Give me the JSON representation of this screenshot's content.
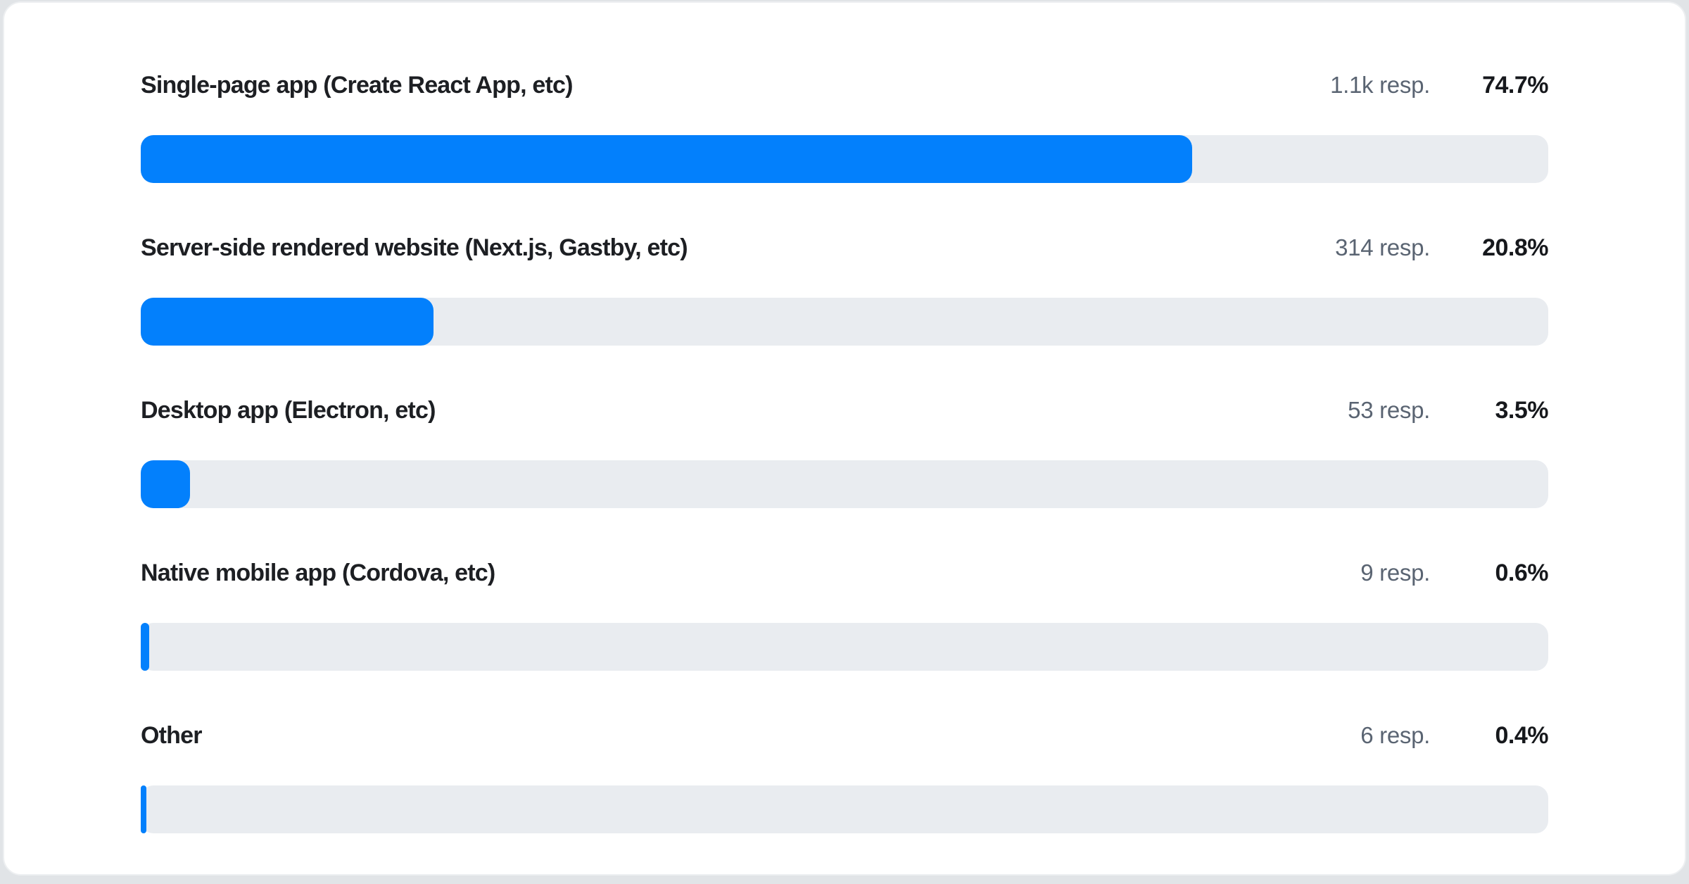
{
  "colors": {
    "bar_fill": "#0380fc",
    "bar_track": "#e9ecf0",
    "label_text": "#1d1f23",
    "responses_text": "#5a6472",
    "percent_text": "#16181c",
    "card_background": "#ffffff",
    "page_background": "#e1e4e7"
  },
  "chart_data": {
    "type": "bar",
    "orientation": "horizontal",
    "title": "",
    "xlabel": "",
    "ylabel": "",
    "xlim": [
      0,
      100
    ],
    "grid": false,
    "legend": false,
    "value_unit": "percent of responses",
    "categories": [
      "Single-page app (Create React App, etc)",
      "Server-side rendered website (Next.js, Gastby, etc)",
      "Desktop app (Electron, etc)",
      "Native mobile app (Cordova, etc)",
      "Other"
    ],
    "values": [
      74.7,
      20.8,
      3.5,
      0.6,
      0.4
    ],
    "items": [
      {
        "label": "Single-page app (Create React App, etc)",
        "responses_label": "1.1k resp.",
        "percent_label": "74.7%",
        "value": 74.7,
        "narrow_label": false
      },
      {
        "label": "Server-side rendered website (Next.js, Gastby, etc)",
        "responses_label": "314 resp.",
        "percent_label": "20.8%",
        "value": 20.8,
        "narrow_label": false
      },
      {
        "label": "Desktop app (Electron, etc)",
        "responses_label": "53 resp.",
        "percent_label": "3.5%",
        "value": 3.5,
        "narrow_label": false
      },
      {
        "label": "Native mobile app (Cordova, etc)",
        "responses_label": "9 resp.",
        "percent_label": "0.6%",
        "value": 0.6,
        "narrow_label": true
      },
      {
        "label": "Other",
        "responses_label": "6 resp.",
        "percent_label": "0.4%",
        "value": 0.4,
        "narrow_label": false
      }
    ]
  }
}
